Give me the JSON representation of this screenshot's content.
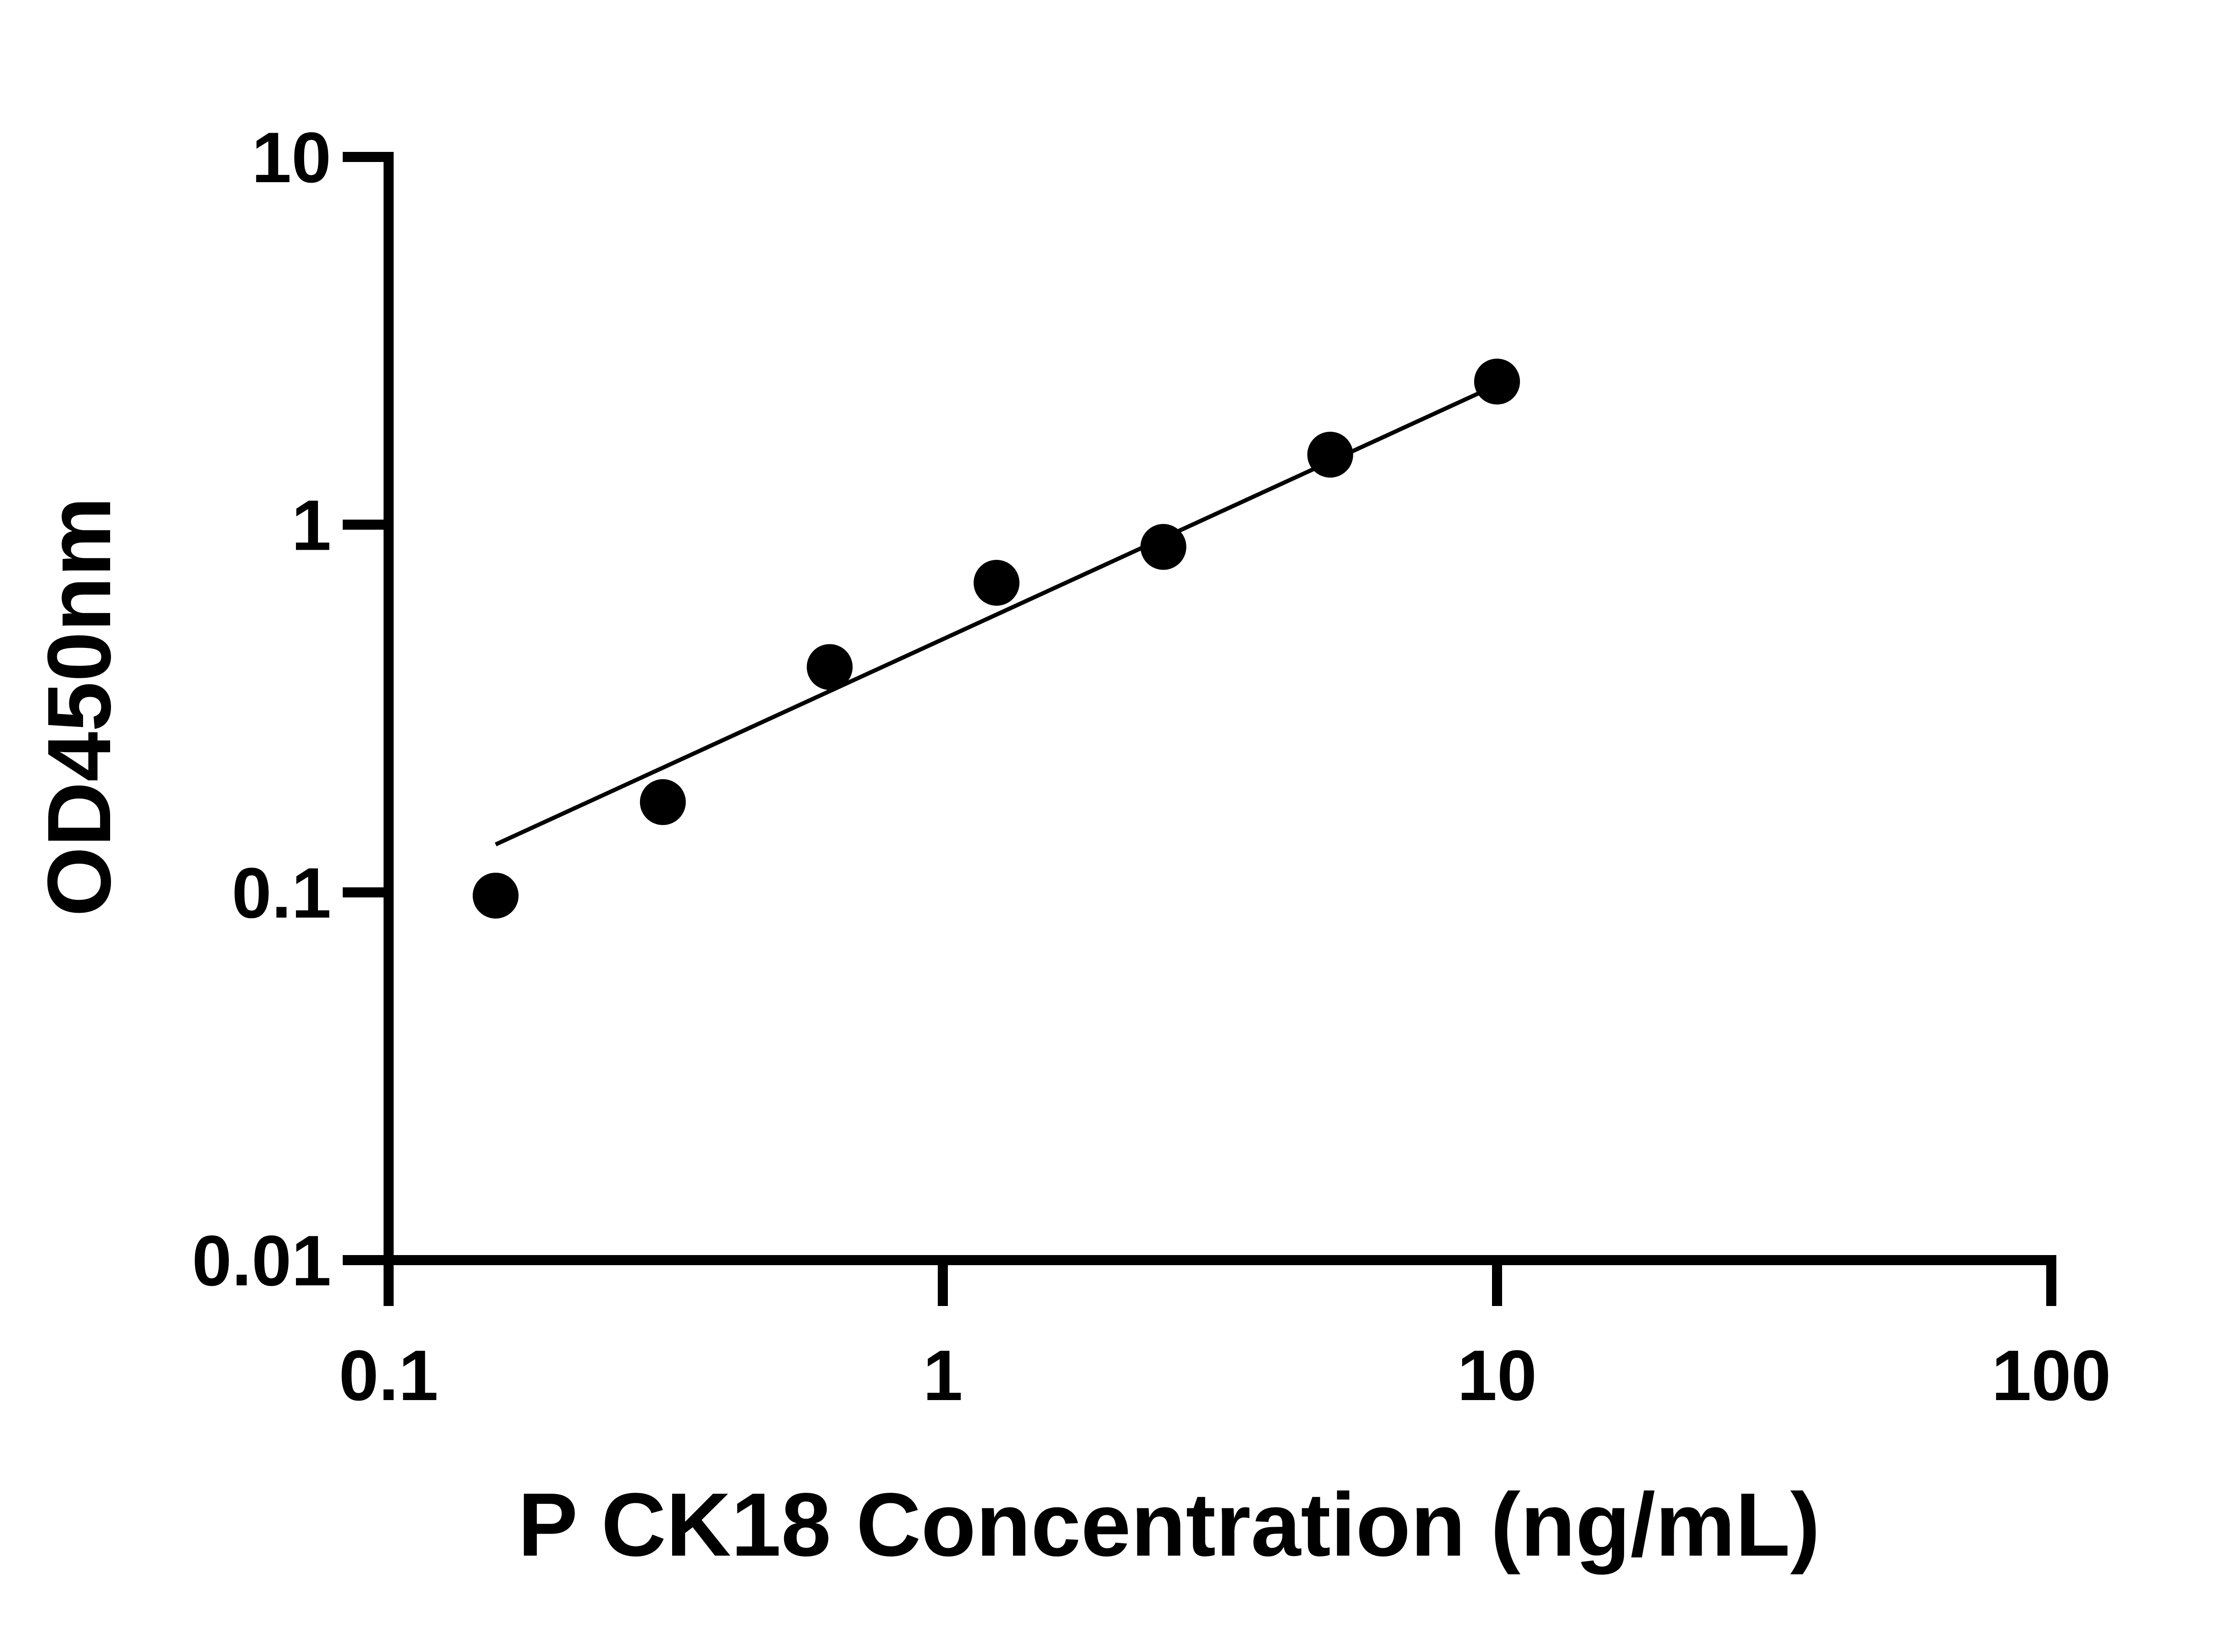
{
  "chart_data": {
    "type": "scatter",
    "title": "",
    "xlabel": "P CK18 Concentration (ng/mL)",
    "ylabel": "OD450nm",
    "x_scale": "log",
    "y_scale": "log",
    "xlim": [
      0.1,
      100
    ],
    "ylim": [
      0.01,
      10
    ],
    "x_ticks": [
      {
        "value": 0.1,
        "label": "0.1"
      },
      {
        "value": 1,
        "label": "1"
      },
      {
        "value": 10,
        "label": "10"
      },
      {
        "value": 100,
        "label": "100"
      }
    ],
    "y_ticks": [
      {
        "value": 0.01,
        "label": "0.01"
      },
      {
        "value": 0.1,
        "label": "0.1"
      },
      {
        "value": 1,
        "label": "1"
      },
      {
        "value": 10,
        "label": "10"
      }
    ],
    "grid": false,
    "legend": "none",
    "colors": {
      "points": "#000000",
      "line": "#000000",
      "axes": "#000000"
    },
    "series": [
      {
        "type": "scatter",
        "x": [
          0.156,
          0.3125,
          0.625,
          1.25,
          2.5,
          5,
          10
        ],
        "y": [
          0.098,
          0.176,
          0.41,
          0.695,
          0.87,
          1.55,
          2.45
        ]
      },
      {
        "type": "line",
        "x": [
          0.156,
          10
        ],
        "y": [
          0.135,
          2.4
        ]
      }
    ]
  }
}
